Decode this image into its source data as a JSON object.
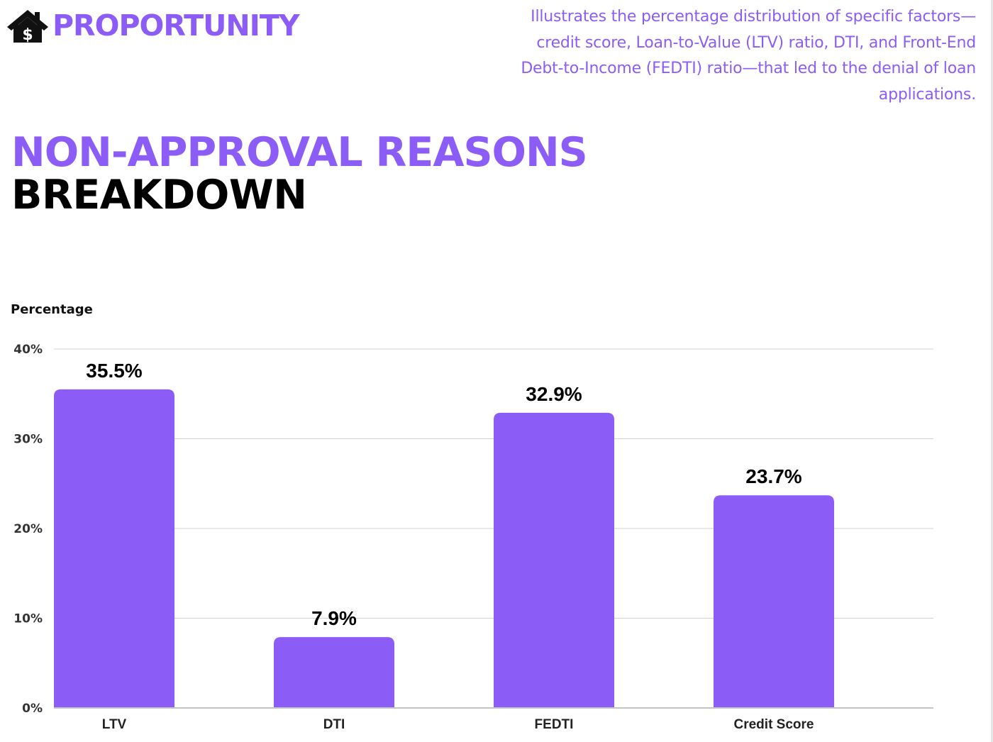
{
  "brand": {
    "name": "PROPORTUNITY",
    "icon": "house-dollar-icon"
  },
  "description": "Illustrates the percentage distribution of specific factors—credit score, Loan-to-Value (LTV) ratio, DTI, and Front-End Debt-to-Income (FEDTI) ratio—that led to the denial of loan applications.",
  "title": {
    "line1": "NON-APPROVAL REASONS",
    "line2": "BREAKDOWN"
  },
  "colors": {
    "accent": "#8c5cf6",
    "bar": "#8c5cf6",
    "grid": "#d0d0d0",
    "axis": "#c4c4c4",
    "title_dark": "#000000"
  },
  "chart_data": {
    "type": "bar",
    "ylabel": "Percentage",
    "xlabel": "",
    "categories": [
      "LTV",
      "DTI",
      "FEDTI",
      "Credit Score"
    ],
    "values": [
      35.5,
      7.9,
      32.9,
      23.7
    ],
    "value_labels": [
      "35.5%",
      "7.9%",
      "32.9%",
      "23.7%"
    ],
    "ylim": [
      0,
      40
    ],
    "yticks": [
      0,
      10,
      20,
      30,
      40
    ],
    "ytick_labels": [
      "0%",
      "10%",
      "20%",
      "30%",
      "40%"
    ],
    "grid": true,
    "legend": "none"
  }
}
